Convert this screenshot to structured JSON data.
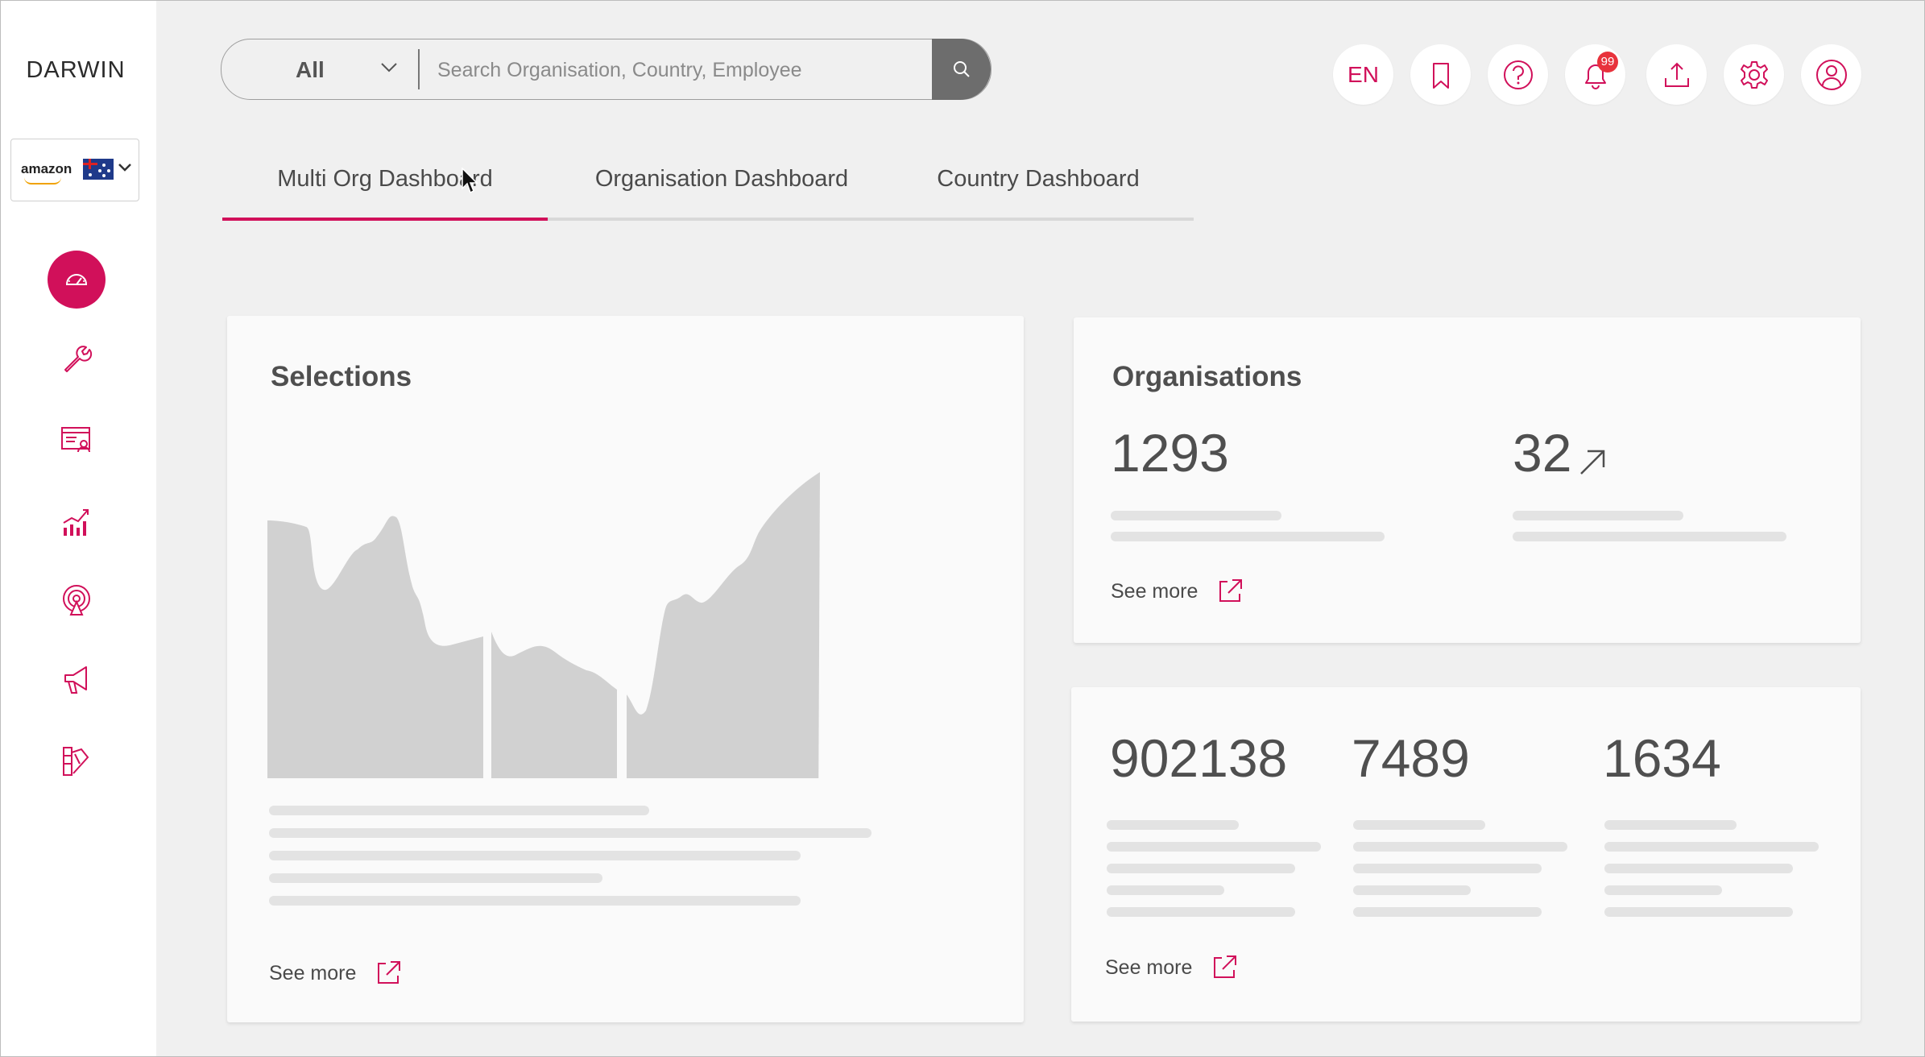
{
  "app": {
    "logo_text": "DARWIN"
  },
  "org_selector": {
    "brand": "amazon",
    "country": "Australia"
  },
  "search": {
    "category": "All",
    "placeholder": "Search Organisation, Country, Employee"
  },
  "top_bar": {
    "language": "EN",
    "notification_count": "99"
  },
  "sidebar": {
    "items": [
      {
        "name": "dashboard",
        "icon": "speedometer-icon",
        "active": true
      },
      {
        "name": "tools",
        "icon": "wrench-icon",
        "active": false
      },
      {
        "name": "employee-records",
        "icon": "id-card-icon",
        "active": false
      },
      {
        "name": "analytics",
        "icon": "chart-icon",
        "active": false
      },
      {
        "name": "broadcast",
        "icon": "signal-tower-icon",
        "active": false
      },
      {
        "name": "announcements",
        "icon": "megaphone-icon",
        "active": false
      },
      {
        "name": "swatches",
        "icon": "swatch-icon",
        "active": false
      }
    ]
  },
  "tabs": [
    {
      "label": "Multi Org Dashboard",
      "active": true
    },
    {
      "label": "Organisation Dashboard",
      "active": false
    },
    {
      "label": "Country Dashboard",
      "active": false
    }
  ],
  "selections_card": {
    "title": "Selections",
    "see_more": "See more"
  },
  "organisations_card": {
    "title": "Organisations",
    "value_1": "1293",
    "value_2": "32",
    "see_more": "See more"
  },
  "stats_card": {
    "value_1": "902138",
    "value_2": "7489",
    "value_3": "1634",
    "see_more": "See more"
  },
  "colors": {
    "accent": "#d1105a",
    "placeholder": "#e3e3e3",
    "chart_fill": "#d1d1d1"
  }
}
